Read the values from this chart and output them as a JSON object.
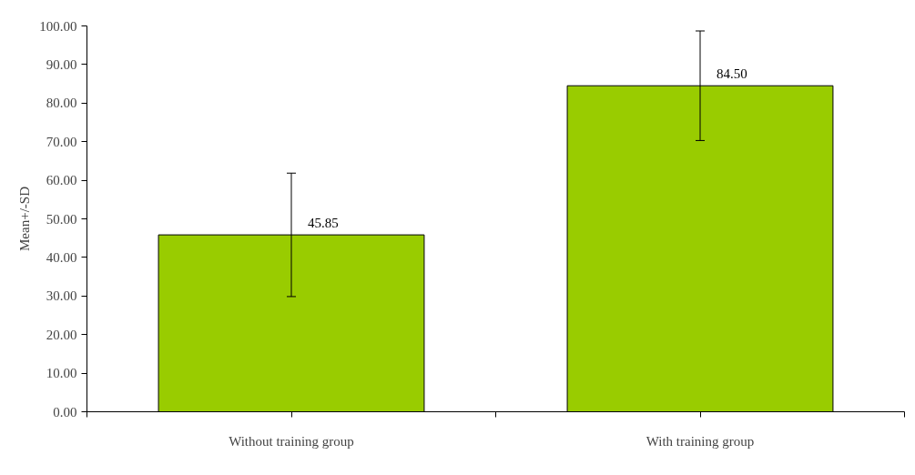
{
  "chart_data": {
    "type": "bar",
    "ylabel": "Mean+/-SD",
    "categories": [
      "Without training group",
      "With training group"
    ],
    "values": [
      45.85,
      84.5
    ],
    "value_labels": [
      "45.85",
      "84.50"
    ],
    "errors": [
      16.0,
      14.2
    ],
    "color": "#99cc00",
    "ylim": [
      0,
      100
    ],
    "yticks": [
      {
        "value": 0,
        "label": "0.00"
      },
      {
        "value": 10,
        "label": "10.00"
      },
      {
        "value": 20,
        "label": "20.00"
      },
      {
        "value": 30,
        "label": "30.00"
      },
      {
        "value": 40,
        "label": "40.00"
      },
      {
        "value": 50,
        "label": "50.00"
      },
      {
        "value": 60,
        "label": "60.00"
      },
      {
        "value": 70,
        "label": "70.00"
      },
      {
        "value": 80,
        "label": "80.00"
      },
      {
        "value": 90,
        "label": "90.00"
      },
      {
        "value": 100,
        "label": "100.00"
      }
    ],
    "grid": false
  }
}
